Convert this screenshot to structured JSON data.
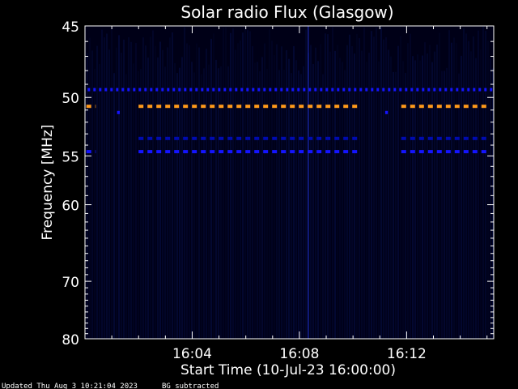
{
  "chart_data": {
    "type": "heatmap",
    "title": "Solar radio Flux (Glasgow)",
    "xlabel": "Start Time (10-Jul-23 16:00:00)",
    "ylabel": "Frequency [MHz]",
    "x_tick_labels": [
      "16:04",
      "16:08",
      "16:12"
    ],
    "x_ticks_minutes": [
      4,
      8,
      12
    ],
    "xlim_minutes": [
      0,
      15.25
    ],
    "y_ticks": [
      45,
      50,
      55,
      60,
      70,
      80
    ],
    "ylim": [
      45,
      80
    ],
    "y_scale": "reciprocal",
    "background_color": "#000017",
    "bands": [
      {
        "freq": 49.4,
        "color": "#1414ff",
        "segments": [
          [
            0.1,
            15.2
          ]
        ],
        "style": "fine-dash"
      },
      {
        "freq": 50.7,
        "color": "#ff9a1a",
        "segments": [
          [
            0.05,
            0.4
          ],
          [
            2.0,
            10.3
          ],
          [
            11.8,
            15.1
          ]
        ],
        "style": "dash"
      },
      {
        "freq": 51.2,
        "color": "#1414ff",
        "segments": [
          [
            1.2,
            1.3
          ],
          [
            11.2,
            11.3
          ]
        ],
        "style": "dash"
      },
      {
        "freq": 53.4,
        "color": "#000bb0",
        "segments": [
          [
            2.0,
            10.3
          ],
          [
            11.8,
            15.1
          ]
        ],
        "style": "dash"
      },
      {
        "freq": 54.6,
        "color": "#1414ff",
        "segments": [
          [
            0.05,
            0.4
          ],
          [
            2.0,
            10.3
          ],
          [
            11.8,
            15.1
          ]
        ],
        "style": "dash"
      }
    ],
    "footer_left": "Updated Thu Aug  3 10:21:04 2023",
    "footer_right": "BG subtracted"
  }
}
